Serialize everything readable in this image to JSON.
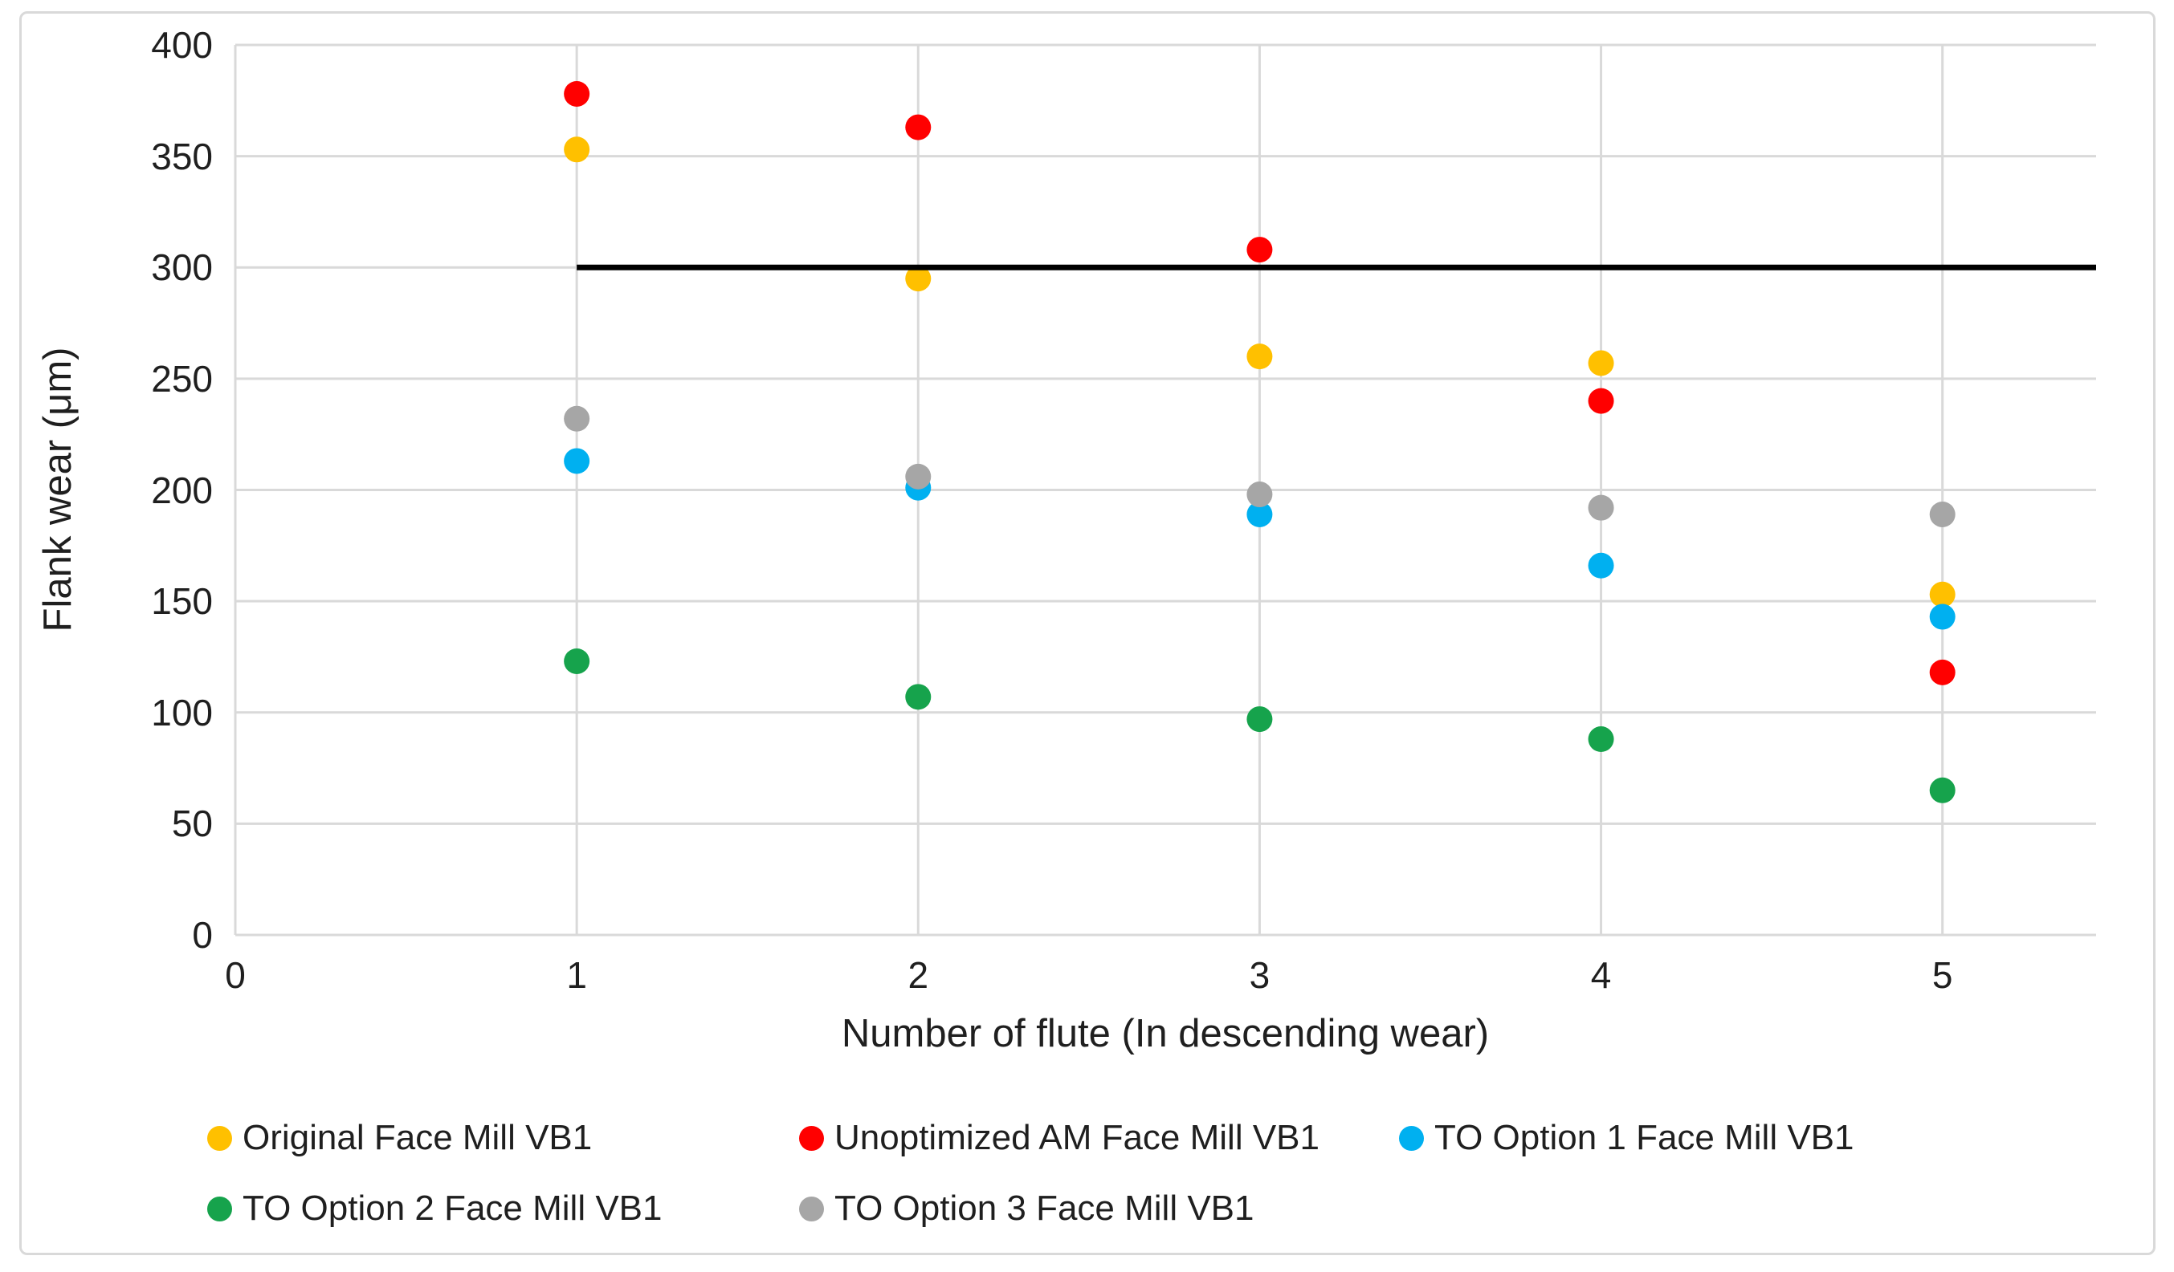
{
  "figure": {
    "background": "#ffffff",
    "border_color": "#d9d9d9"
  },
  "chart_data": {
    "type": "scatter",
    "title": "",
    "xlabel": "Number of flute (In descending wear)",
    "ylabel": "Flank wear (μm)",
    "categories": [
      1,
      2,
      3,
      4,
      5
    ],
    "series": [
      {
        "name": "Original Face Mill VB1",
        "color": "#FFC000",
        "values": [
          353,
          295,
          260,
          257,
          153
        ]
      },
      {
        "name": "Unoptimized AM Face Mill VB1",
        "color": "#FF0000",
        "values": [
          378,
          363,
          308,
          240,
          118
        ]
      },
      {
        "name": "TO Option 1 Face Mill VB1",
        "color": "#00B0F0",
        "values": [
          213,
          201,
          189,
          166,
          143
        ]
      },
      {
        "name": "TO Option 2 Face Mill VB1",
        "color": "#16A34C",
        "values": [
          123,
          107,
          97,
          88,
          65
        ]
      },
      {
        "name": "TO Option 3 Face Mill VB1",
        "color": "#A6A6A6",
        "values": [
          232,
          206,
          198,
          192,
          189
        ]
      }
    ],
    "reference_line": {
      "y": 300,
      "x_start": 1,
      "x_end": 5.45,
      "color": "#000000"
    },
    "xlim": [
      0,
      5.45
    ],
    "ylim": [
      0,
      400
    ],
    "x_ticks": [
      "0",
      "1",
      "2",
      "3",
      "4",
      "5"
    ],
    "y_ticks": [
      "0",
      "50",
      "100",
      "150",
      "200",
      "250",
      "300",
      "350",
      "400"
    ],
    "grid": true,
    "gridline_color": "#d9d9d9",
    "legend_position": "bottom-left, two rows"
  }
}
